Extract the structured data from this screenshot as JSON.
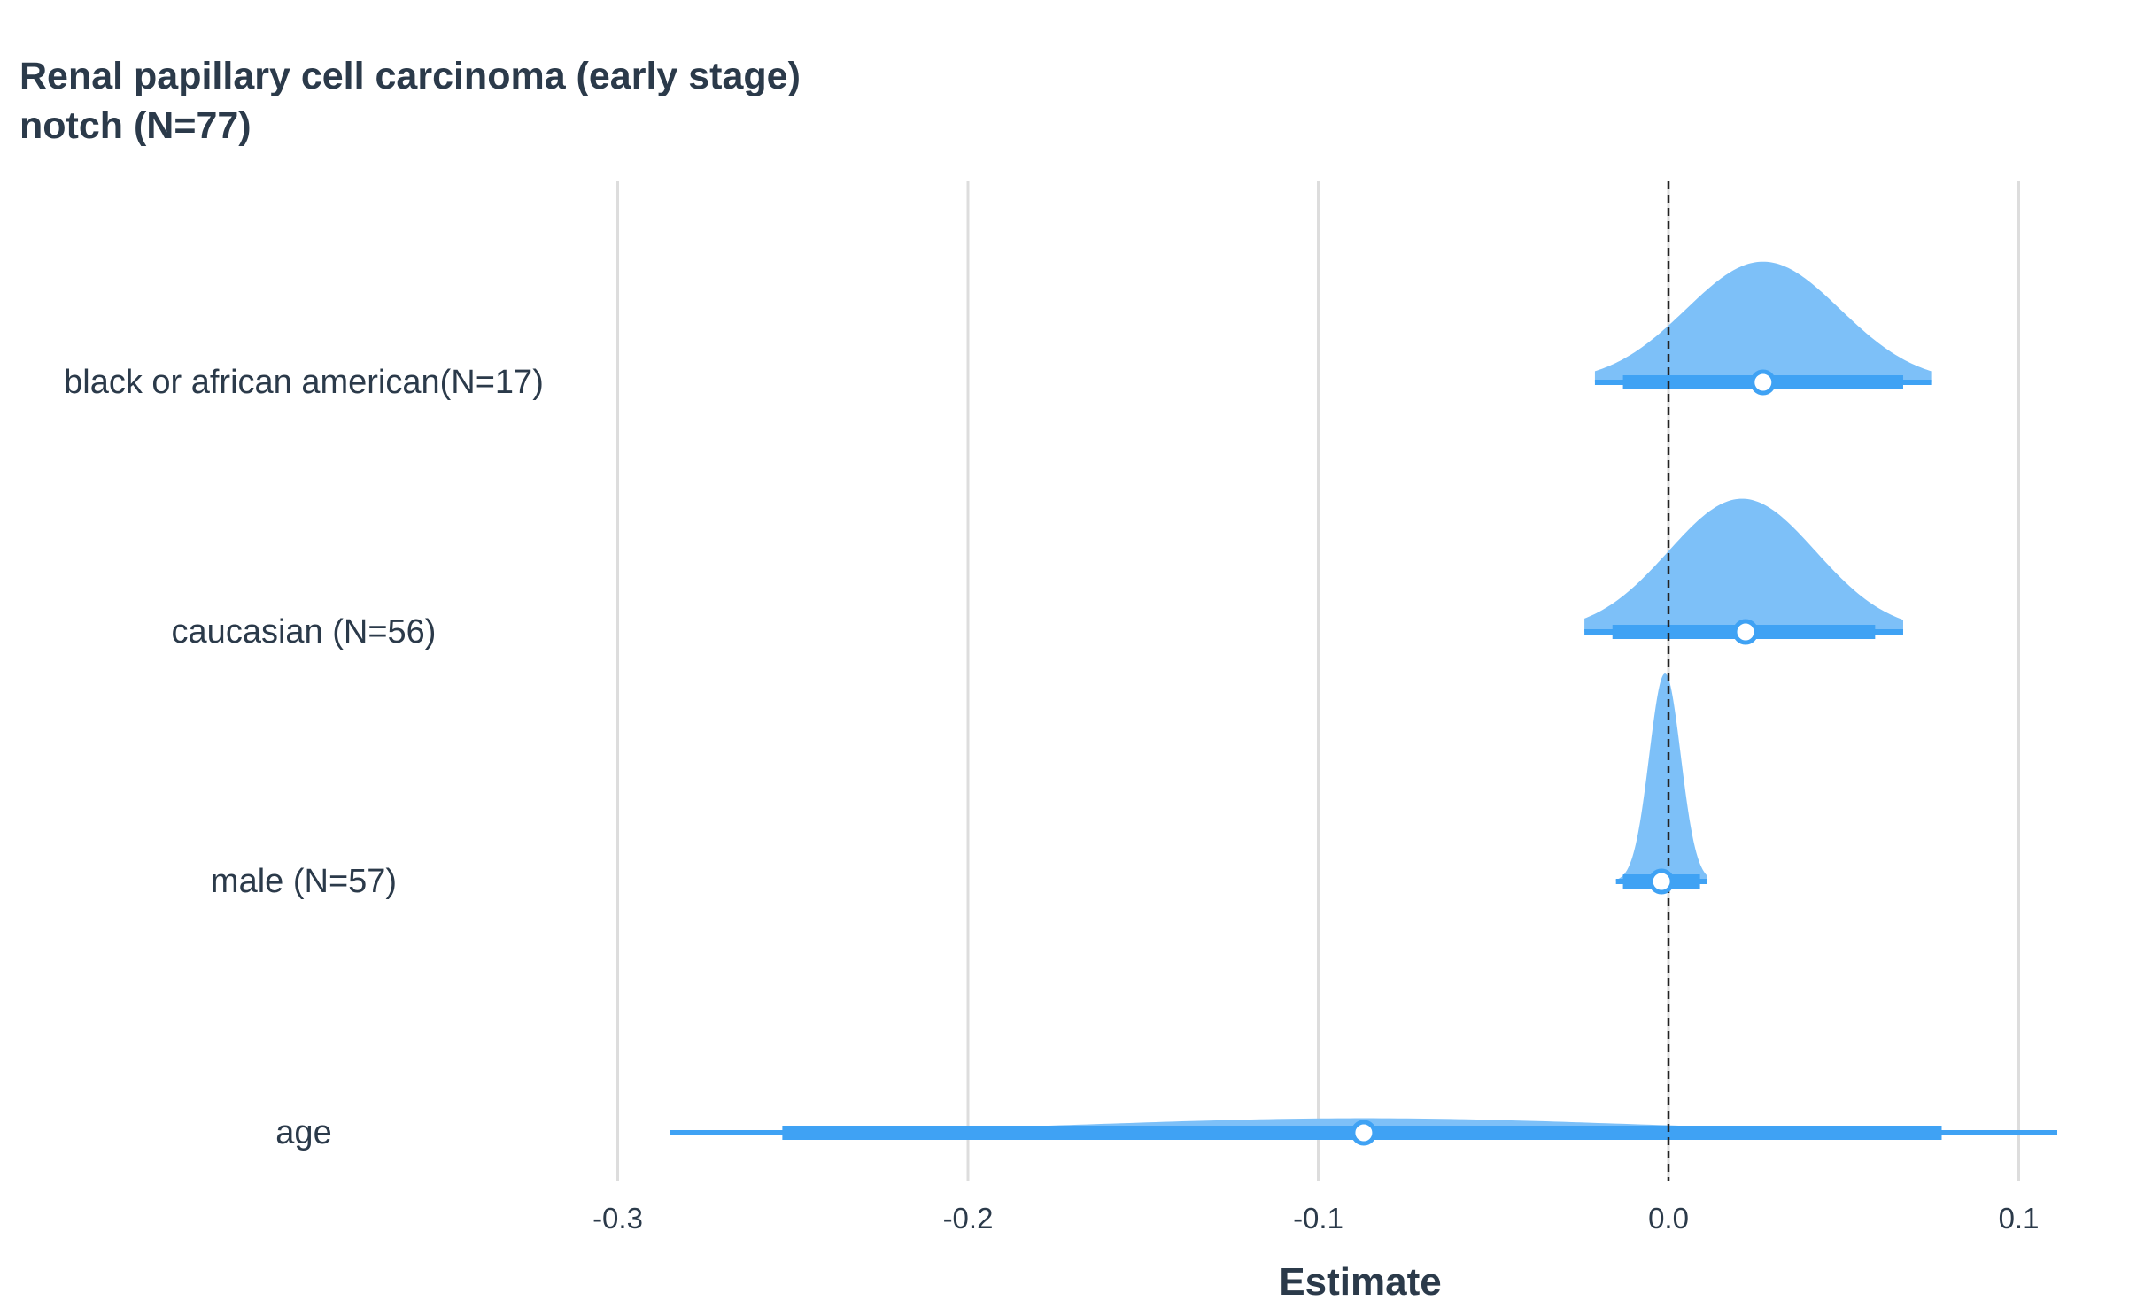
{
  "chart_data": {
    "type": "forest",
    "title": [
      "Renal papillary cell carcinoma (early stage)",
      "notch (N=77)"
    ],
    "xlabel": "Estimate",
    "ylabel": "",
    "xlim": [
      -0.3,
      0.1
    ],
    "x_ticks": [
      -0.3,
      -0.2,
      -0.1,
      0.0,
      0.1
    ],
    "x_tick_labels": [
      "-0.3",
      "-0.2",
      "-0.1",
      "0.0",
      "0.1"
    ],
    "grid": true,
    "reference_line": 0.0,
    "rows": [
      {
        "label": "black or african american(N=17)",
        "estimate": 0.027,
        "ci_inner": [
          -0.013,
          0.067
        ],
        "ci_outer": [
          -0.021,
          0.075
        ],
        "density_peak": 0.027,
        "density_width": 0.022,
        "density_height": 0.58
      },
      {
        "label": "caucasian (N=56)",
        "estimate": 0.022,
        "ci_inner": [
          -0.016,
          0.059
        ],
        "ci_outer": [
          -0.024,
          0.067
        ],
        "density_peak": 0.021,
        "density_width": 0.021,
        "density_height": 0.64
      },
      {
        "label": "male (N=57)",
        "estimate": -0.002,
        "ci_inner": [
          -0.013,
          0.009
        ],
        "ci_outer": [
          -0.015,
          0.011
        ],
        "density_peak": -0.001,
        "density_width": 0.0045,
        "density_height": 1.0
      },
      {
        "label": "age",
        "estimate": -0.087,
        "ci_inner": [
          -0.253,
          0.078
        ],
        "ci_outer": [
          -0.285,
          0.111
        ],
        "density_peak": -0.087,
        "density_width": 0.075,
        "density_height": 0.07
      }
    ],
    "colors": {
      "fill": "#7dc0f8",
      "interval": "#3fa2f4",
      "point_fill": "#ffffff",
      "grid": "#dddddd",
      "reference": "#222222",
      "text": "#2b3a4a"
    }
  }
}
